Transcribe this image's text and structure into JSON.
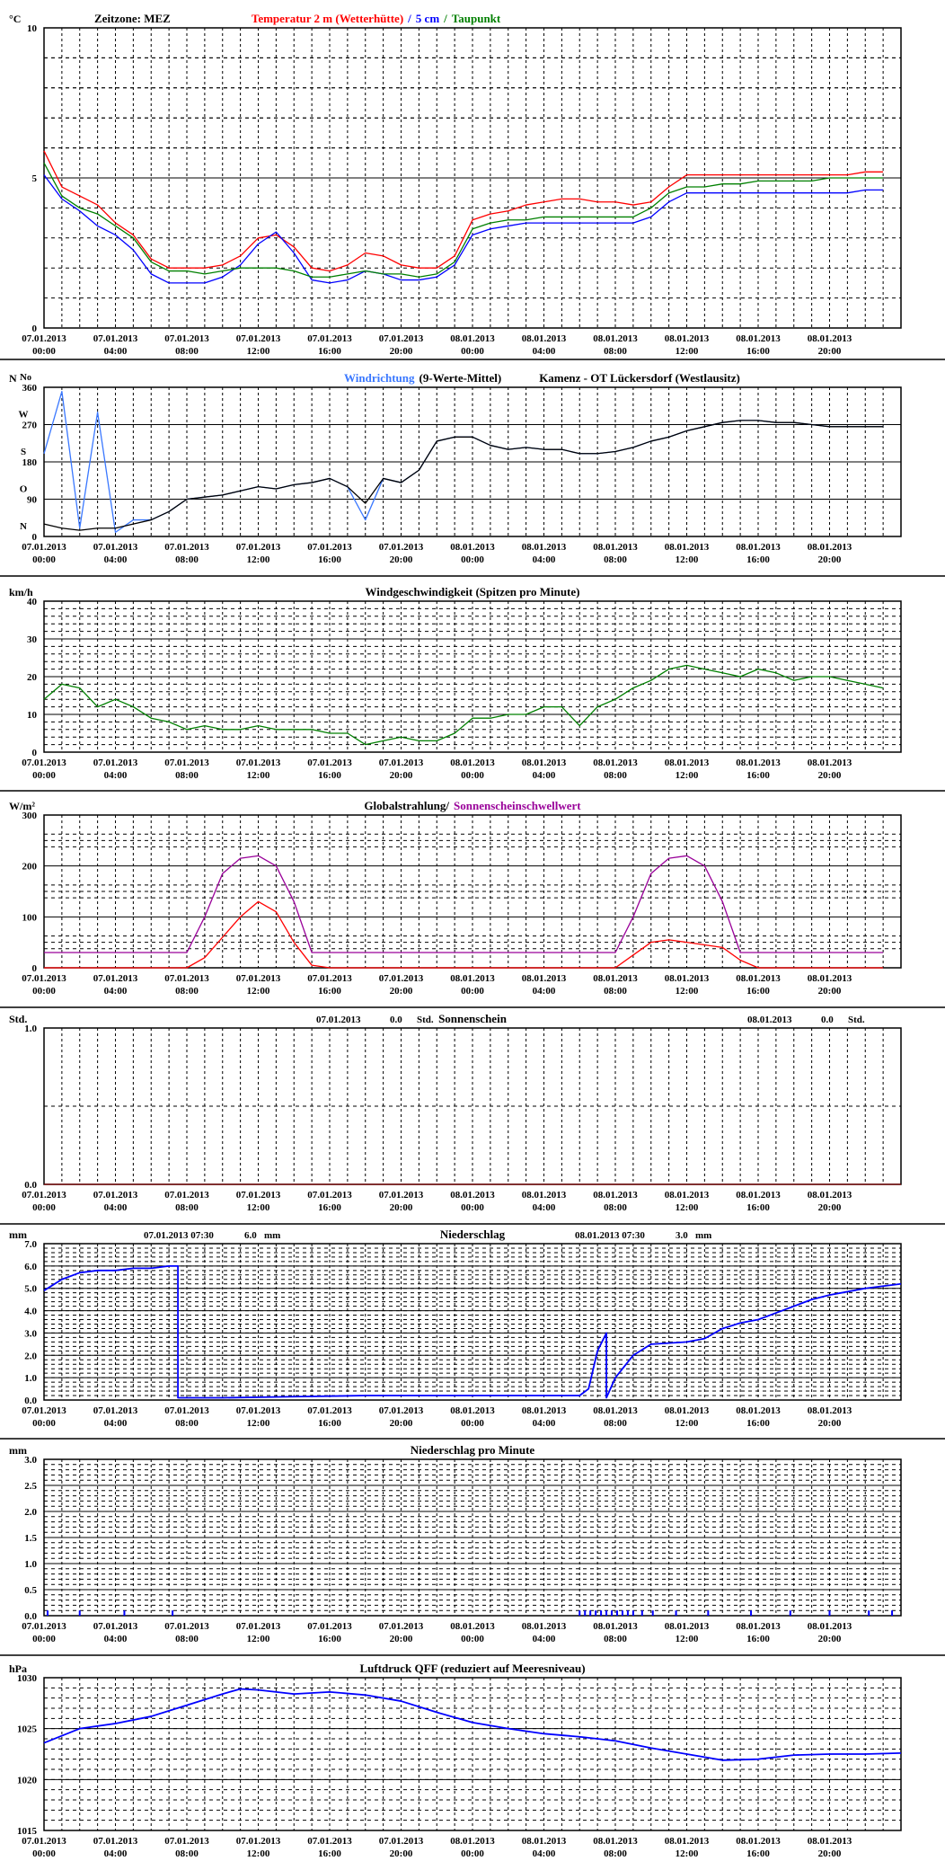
{
  "time_ticks": [
    [
      "07.01.2013",
      "00:00"
    ],
    [
      "07.01.2013",
      "04:00"
    ],
    [
      "07.01.2013",
      "08:00"
    ],
    [
      "07.01.2013",
      "12:00"
    ],
    [
      "07.01.2013",
      "16:00"
    ],
    [
      "07.01.2013",
      "20:00"
    ],
    [
      "08.01.2013",
      "00:00"
    ],
    [
      "08.01.2013",
      "04:00"
    ],
    [
      "08.01.2013",
      "08:00"
    ],
    [
      "08.01.2013",
      "12:00"
    ],
    [
      "08.01.2013",
      "16:00"
    ],
    [
      "08.01.2013",
      "20:00"
    ]
  ],
  "colors": {
    "red": "#ff0000",
    "blue": "#0000ff",
    "green": "#008000",
    "lightblue": "#3a78ff",
    "black": "#000000",
    "purple": "#990099",
    "darkred": "#800000"
  },
  "chart_data": [
    {
      "id": "temperature",
      "type": "line",
      "unit": "°C",
      "yticks": [
        "0",
        "5",
        "10"
      ],
      "ylim": [
        0,
        10
      ],
      "title_parts": [
        {
          "text": "Zeitzone: MEZ",
          "color": "#000000"
        },
        {
          "text": "Temperatur 2 m (Wetterhütte)",
          "color": "#ff0000"
        },
        {
          "text": "/",
          "color": "#0000ff"
        },
        {
          "text": "5 cm",
          "color": "#0000ff"
        },
        {
          "text": "/",
          "color": "#008000"
        },
        {
          "text": "Taupunkt",
          "color": "#008000"
        }
      ],
      "x_hours": [
        0,
        1,
        2,
        3,
        4,
        5,
        6,
        7,
        8,
        9,
        10,
        11,
        12,
        13,
        14,
        15,
        16,
        17,
        18,
        19,
        20,
        21,
        22,
        23,
        24,
        25,
        26,
        27,
        28,
        29,
        30,
        31,
        32,
        33,
        34,
        35,
        36,
        37,
        38,
        39,
        40,
        41,
        42,
        43,
        44,
        45,
        46,
        47
      ],
      "series": [
        {
          "name": "Temperatur 2 m (Wetterhütte)",
          "color": "#ff0000",
          "values": [
            5.9,
            4.7,
            4.4,
            4.1,
            3.5,
            3.1,
            2.3,
            2.0,
            2.0,
            2.0,
            2.1,
            2.4,
            3.0,
            3.1,
            2.7,
            2.0,
            1.9,
            2.1,
            2.5,
            2.4,
            2.1,
            2.0,
            2.0,
            2.4,
            3.6,
            3.8,
            3.9,
            4.1,
            4.2,
            4.3,
            4.3,
            4.2,
            4.2,
            4.1,
            4.2,
            4.7,
            5.1,
            5.1,
            5.1,
            5.1,
            5.1,
            5.1,
            5.1,
            5.1,
            5.1,
            5.1,
            5.2,
            5.2
          ]
        },
        {
          "name": "5 cm",
          "color": "#0000ff",
          "values": [
            5.1,
            4.3,
            3.9,
            3.4,
            3.1,
            2.6,
            1.8,
            1.5,
            1.5,
            1.5,
            1.7,
            2.1,
            2.8,
            3.2,
            2.5,
            1.6,
            1.5,
            1.6,
            1.9,
            1.8,
            1.6,
            1.6,
            1.7,
            2.1,
            3.1,
            3.3,
            3.4,
            3.5,
            3.5,
            3.5,
            3.5,
            3.5,
            3.5,
            3.5,
            3.7,
            4.2,
            4.5,
            4.5,
            4.5,
            4.5,
            4.5,
            4.5,
            4.5,
            4.5,
            4.5,
            4.5,
            4.6,
            4.6
          ]
        },
        {
          "name": "Taupunkt",
          "color": "#008000",
          "values": [
            5.5,
            4.4,
            4.0,
            3.8,
            3.4,
            3.0,
            2.2,
            1.9,
            1.9,
            1.8,
            1.9,
            2.0,
            2.0,
            2.0,
            1.9,
            1.7,
            1.7,
            1.8,
            1.9,
            1.8,
            1.8,
            1.7,
            1.8,
            2.2,
            3.3,
            3.5,
            3.6,
            3.6,
            3.7,
            3.7,
            3.7,
            3.7,
            3.7,
            3.7,
            4.0,
            4.5,
            4.7,
            4.7,
            4.8,
            4.8,
            4.9,
            4.9,
            4.9,
            4.9,
            5.0,
            5.0,
            5.0,
            5.0
          ]
        }
      ]
    },
    {
      "id": "wind_direction",
      "type": "line",
      "unit": "N",
      "degree_mark": "o",
      "yticks": [
        "0",
        "90",
        "180",
        "270",
        "360"
      ],
      "ylim": [
        0,
        360
      ],
      "direction_labels": [
        "N",
        "O",
        "S",
        "W",
        "N"
      ],
      "title_parts": [
        {
          "text": "Windrichtung",
          "color": "#3a78ff"
        },
        {
          "text": "(9-Werte-Mittel)",
          "color": "#000000"
        },
        {
          "text": "Kamenz - OT Lückersdorf (Westlausitz)",
          "color": "#000000"
        }
      ],
      "x_hours": [
        0,
        1,
        2,
        3,
        4,
        5,
        6,
        7,
        8,
        9,
        10,
        11,
        12,
        13,
        14,
        15,
        16,
        17,
        18,
        19,
        20,
        21,
        22,
        23,
        24,
        25,
        26,
        27,
        28,
        29,
        30,
        31,
        32,
        33,
        34,
        35,
        36,
        37,
        38,
        39,
        40,
        41,
        42,
        43,
        44,
        45,
        46,
        47
      ],
      "series": [
        {
          "name": "Windrichtung",
          "color": "#3a78ff",
          "values": [
            200,
            350,
            20,
            300,
            10,
            40,
            40,
            60,
            90,
            95,
            100,
            110,
            120,
            115,
            125,
            130,
            140,
            120,
            40,
            140,
            130,
            160,
            230,
            240,
            240,
            220,
            210,
            215,
            210,
            210,
            200,
            200,
            205,
            215,
            230,
            240,
            255,
            265,
            275,
            280,
            280,
            275,
            275,
            270,
            265,
            265,
            265,
            265
          ]
        },
        {
          "name": "9-Werte-Mittel",
          "color": "#000000",
          "values": [
            30,
            20,
            15,
            20,
            20,
            30,
            40,
            60,
            90,
            95,
            100,
            110,
            120,
            115,
            125,
            130,
            140,
            120,
            80,
            140,
            130,
            160,
            230,
            240,
            240,
            220,
            210,
            215,
            210,
            210,
            200,
            200,
            205,
            215,
            230,
            240,
            255,
            265,
            275,
            280,
            280,
            275,
            275,
            270,
            265,
            265,
            265,
            265
          ]
        }
      ]
    },
    {
      "id": "wind_speed",
      "type": "line",
      "unit": "km/h",
      "yticks": [
        "0",
        "10",
        "20",
        "30",
        "40"
      ],
      "ylim": [
        0,
        40
      ],
      "title_parts": [
        {
          "text": "Windgeschwindigkeit (Spitzen pro Minute)",
          "color": "#000000"
        }
      ],
      "x_hours": [
        0,
        1,
        2,
        3,
        4,
        5,
        6,
        7,
        8,
        9,
        10,
        11,
        12,
        13,
        14,
        15,
        16,
        17,
        18,
        19,
        20,
        21,
        22,
        23,
        24,
        25,
        26,
        27,
        28,
        29,
        30,
        31,
        32,
        33,
        34,
        35,
        36,
        37,
        38,
        39,
        40,
        41,
        42,
        43,
        44,
        45,
        46,
        47
      ],
      "series": [
        {
          "name": "Windgeschwindigkeit",
          "color": "#008000",
          "values": [
            14,
            18,
            17,
            12,
            14,
            12,
            9,
            8,
            6,
            7,
            6,
            6,
            7,
            6,
            6,
            6,
            5,
            5,
            2,
            3,
            4,
            3,
            3,
            5,
            9,
            9,
            10,
            10,
            12,
            12,
            7,
            12,
            14,
            17,
            19,
            22,
            23,
            22,
            21,
            20,
            22,
            21,
            19,
            20,
            20,
            19,
            18,
            17
          ]
        }
      ]
    },
    {
      "id": "global_radiation",
      "type": "line",
      "unit": "W/m²",
      "yticks": [
        "0",
        "100",
        "200",
        "300"
      ],
      "ylim": [
        0,
        300
      ],
      "title_parts": [
        {
          "text": "Globalstrahlung/",
          "color": "#000000"
        },
        {
          "text": "Sonnenscheinschwellwert",
          "color": "#990099"
        }
      ],
      "x_hours": [
        0,
        1,
        2,
        3,
        4,
        5,
        6,
        7,
        8,
        9,
        10,
        11,
        12,
        13,
        14,
        15,
        16,
        17,
        18,
        19,
        20,
        21,
        22,
        23,
        24,
        25,
        26,
        27,
        28,
        29,
        30,
        31,
        32,
        33,
        34,
        35,
        36,
        37,
        38,
        39,
        40,
        41,
        42,
        43,
        44,
        45,
        46,
        47
      ],
      "series": [
        {
          "name": "Globalstrahlung",
          "color": "#ff0000",
          "values": [
            0,
            0,
            0,
            0,
            0,
            0,
            0,
            0,
            0,
            20,
            60,
            100,
            130,
            110,
            50,
            5,
            0,
            0,
            0,
            0,
            0,
            0,
            0,
            0,
            0,
            0,
            0,
            0,
            0,
            0,
            0,
            0,
            0,
            25,
            50,
            55,
            50,
            45,
            40,
            15,
            0,
            0,
            0,
            0,
            0,
            0,
            0,
            0
          ]
        },
        {
          "name": "Sonnenscheinschwellwert",
          "color": "#990099",
          "values": [
            30,
            30,
            30,
            30,
            30,
            30,
            30,
            30,
            30,
            100,
            185,
            215,
            220,
            200,
            130,
            30,
            30,
            30,
            30,
            30,
            30,
            30,
            30,
            30,
            30,
            30,
            30,
            30,
            30,
            30,
            30,
            30,
            30,
            100,
            185,
            215,
            220,
            200,
            130,
            30,
            30,
            30,
            30,
            30,
            30,
            30,
            30,
            30
          ]
        }
      ]
    },
    {
      "id": "sunshine",
      "type": "line",
      "unit": "Std.",
      "yticks": [
        "0.0",
        "1.0"
      ],
      "ylim": [
        0,
        1
      ],
      "title_parts": [
        {
          "text": "Sonnenschein",
          "color": "#000000"
        }
      ],
      "annotations": [
        {
          "date": "07.01.2013",
          "value": "0.0",
          "unit": "Std."
        },
        {
          "date": "08.01.2013",
          "value": "0.0",
          "unit": "Std."
        }
      ],
      "x_hours": [
        0,
        48
      ],
      "series": [
        {
          "name": "Sonnenschein",
          "color": "#800000",
          "values": [
            0,
            0
          ]
        }
      ]
    },
    {
      "id": "precipitation",
      "type": "line",
      "unit": "mm",
      "yticks": [
        "0.0",
        "1.0",
        "2.0",
        "3.0",
        "4.0",
        "5.0",
        "6.0",
        "7.0"
      ],
      "ylim": [
        0,
        7
      ],
      "title_parts": [
        {
          "text": "Niederschlag",
          "color": "#000000"
        }
      ],
      "annotations": [
        {
          "date": "07.01.2013 07:30",
          "value": "6.0",
          "unit": "mm"
        },
        {
          "date": "08.01.2013 07:30",
          "value": "3.0",
          "unit": "mm"
        }
      ],
      "x_hours": [
        0,
        1,
        2,
        3,
        4,
        5,
        6,
        7,
        7.5,
        7.5,
        10,
        14,
        18,
        20,
        24,
        28,
        30,
        30.5,
        31,
        31.5,
        31.5,
        32,
        33,
        34,
        35,
        36,
        37,
        38,
        39,
        40,
        41,
        42,
        43,
        44,
        45,
        46,
        47,
        48
      ],
      "series": [
        {
          "name": "Niederschlag",
          "color": "#0000ff",
          "values": [
            4.9,
            5.4,
            5.7,
            5.8,
            5.8,
            5.9,
            5.9,
            6.0,
            6.0,
            0.1,
            0.1,
            0.15,
            0.2,
            0.2,
            0.2,
            0.2,
            0.2,
            0.5,
            2.2,
            3.0,
            0.1,
            1.0,
            2.0,
            2.5,
            2.55,
            2.6,
            2.75,
            3.2,
            3.45,
            3.6,
            3.9,
            4.2,
            4.5,
            4.7,
            4.85,
            5.0,
            5.1,
            5.2
          ]
        }
      ]
    },
    {
      "id": "precipitation_per_minute",
      "type": "bar",
      "unit": "mm",
      "yticks": [
        "0.0",
        "0.5",
        "1.0",
        "1.5",
        "2.0",
        "2.5",
        "3.0"
      ],
      "ylim": [
        0,
        3
      ],
      "title_parts": [
        {
          "text": "Niederschlag pro Minute",
          "color": "#000000"
        }
      ],
      "x_hours": [
        0.2,
        2.0,
        4.5,
        7.2,
        30.0,
        30.3,
        30.6,
        30.9,
        31.2,
        31.5,
        31.8,
        32.1,
        32.4,
        32.7,
        33.0,
        33.5,
        34.1,
        35.4,
        37.2,
        39.6,
        41.8,
        44.0,
        46.2,
        47.5
      ],
      "series": [
        {
          "name": "Niederschlag pro Minute",
          "color": "#0000ff",
          "values": [
            0.1,
            0.1,
            0.1,
            0.1,
            0.1,
            0.1,
            0.1,
            0.1,
            0.1,
            0.1,
            0.1,
            0.1,
            0.1,
            0.1,
            0.1,
            0.1,
            0.1,
            0.1,
            0.1,
            0.1,
            0.1,
            0.1,
            0.1,
            0.1
          ]
        }
      ]
    },
    {
      "id": "pressure",
      "type": "line",
      "unit": "hPa",
      "yticks": [
        "1015",
        "1020",
        "1025",
        "1030"
      ],
      "ylim": [
        1015,
        1030
      ],
      "title_parts": [
        {
          "text": "Luftdruck QFF (reduziert auf Meeresniveau)",
          "color": "#000000"
        }
      ],
      "x_hours": [
        0,
        2,
        4,
        6,
        8,
        10,
        11,
        12,
        13,
        14,
        16,
        18,
        20,
        22,
        24,
        26,
        28,
        30,
        32,
        34,
        36,
        38,
        40,
        42,
        44,
        46,
        48
      ],
      "series": [
        {
          "name": "Luftdruck QFF",
          "color": "#0000ff",
          "values": [
            1023.6,
            1025.0,
            1025.5,
            1026.2,
            1027.3,
            1028.4,
            1028.9,
            1028.8,
            1028.6,
            1028.4,
            1028.6,
            1028.3,
            1027.7,
            1026.6,
            1025.6,
            1025.0,
            1024.5,
            1024.2,
            1023.8,
            1023.1,
            1022.5,
            1021.9,
            1022.0,
            1022.4,
            1022.5,
            1022.5,
            1022.6
          ]
        }
      ]
    }
  ]
}
